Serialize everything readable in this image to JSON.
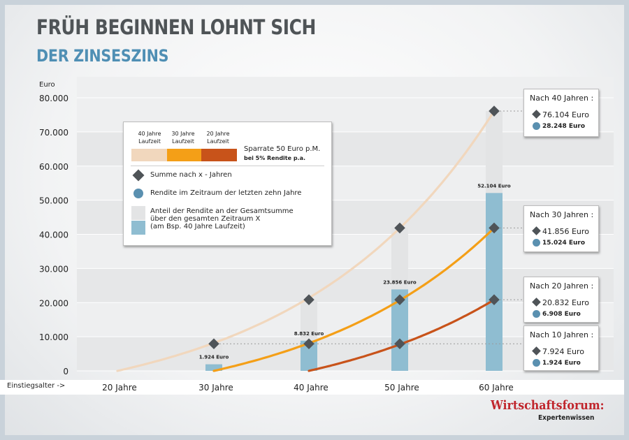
{
  "header": {
    "title": "FRÜH BEGINNEN LOHNT SICH",
    "subtitle": "DER ZINSESZINS"
  },
  "colors": {
    "curve_40": "#f1d7bd",
    "curve_30": "#f49f17",
    "curve_20": "#c8531a",
    "bar_return": "#8fbdd1",
    "bar_total": "#e3e4e5",
    "marker": "#4f5458",
    "dot": "#5a90b0",
    "title": "#4f5457",
    "subtitle": "#4f8fb4",
    "logo": "#c0262d"
  },
  "legend": {
    "label_40": "40 Jahre\nLaufzeit",
    "label_30": "30 Jahre\nLaufzeit",
    "label_20": "20 Jahre\nLaufzeit",
    "rate_line1": "Sparrate 50 Euro p.M.",
    "rate_line2": "bei 5% Rendite p.a.",
    "diamond_text": "Summe nach x - Jahren",
    "dot_text": "Rendite im Zeitraum der letzten zehn Jahre",
    "bar_text": "Anteil der Rendite an der Gesamtsumme\nüber den gesamten Zeitraum X\n(am Bsp. 40 Jahre Laufzeit)"
  },
  "callouts": [
    {
      "heading": "Nach 40 Jahren :",
      "sum": "76.104 Euro",
      "return": "28.248 Euro"
    },
    {
      "heading": "Nach 30 Jahren :",
      "sum": "41.856 Euro",
      "return": "15.024 Euro"
    },
    {
      "heading": "Nach 20 Jahren :",
      "sum": "20.832 Euro",
      "return": "6.908 Euro"
    },
    {
      "heading": "Nach 10 Jahren :",
      "sum": "7.924 Euro",
      "return": "1.924 Euro"
    }
  ],
  "x_axis_prefix": "Einstiegsalter ->",
  "logo": {
    "name": "Wirtschaftsforum:",
    "tagline": "Expertenwissen"
  },
  "chart_data": {
    "type": "line",
    "ylabel": "Euro",
    "ylim": [
      0,
      80000
    ],
    "yticks": [
      0,
      10000,
      20000,
      30000,
      40000,
      50000,
      60000,
      70000,
      80000
    ],
    "ytick_labels": [
      "0",
      "10.000",
      "20.000",
      "30.000",
      "40.000",
      "50.000",
      "60.000",
      "70.000",
      "80.000"
    ],
    "categories": [
      "20 Jahre",
      "30 Jahre",
      "40 Jahre",
      "50 Jahre",
      "60 Jahre"
    ],
    "series": [
      {
        "name": "40 Jahre Laufzeit",
        "values": [
          0,
          7924,
          20832,
          41856,
          76104
        ]
      },
      {
        "name": "30 Jahre Laufzeit",
        "values": [
          null,
          0,
          7924,
          20832,
          41856
        ]
      },
      {
        "name": "20 Jahre Laufzeit",
        "values": [
          null,
          null,
          0,
          7924,
          20832
        ]
      }
    ],
    "return_bars": [
      {
        "category": "30 Jahre",
        "value": 1924,
        "label": "1.924 Euro"
      },
      {
        "category": "40 Jahre",
        "value": 8832,
        "label": "8.832 Euro"
      },
      {
        "category": "50 Jahre",
        "value": 23856,
        "label": "23.856 Euro"
      },
      {
        "category": "60 Jahre",
        "value": 52104,
        "label": "52.104 Euro"
      }
    ],
    "total_bars": [
      {
        "category": "30 Jahre",
        "value": 7924
      },
      {
        "category": "40 Jahre",
        "value": 20832
      },
      {
        "category": "50 Jahre",
        "value": 41856
      },
      {
        "category": "60 Jahre",
        "value": 76104
      }
    ],
    "grid": true
  }
}
